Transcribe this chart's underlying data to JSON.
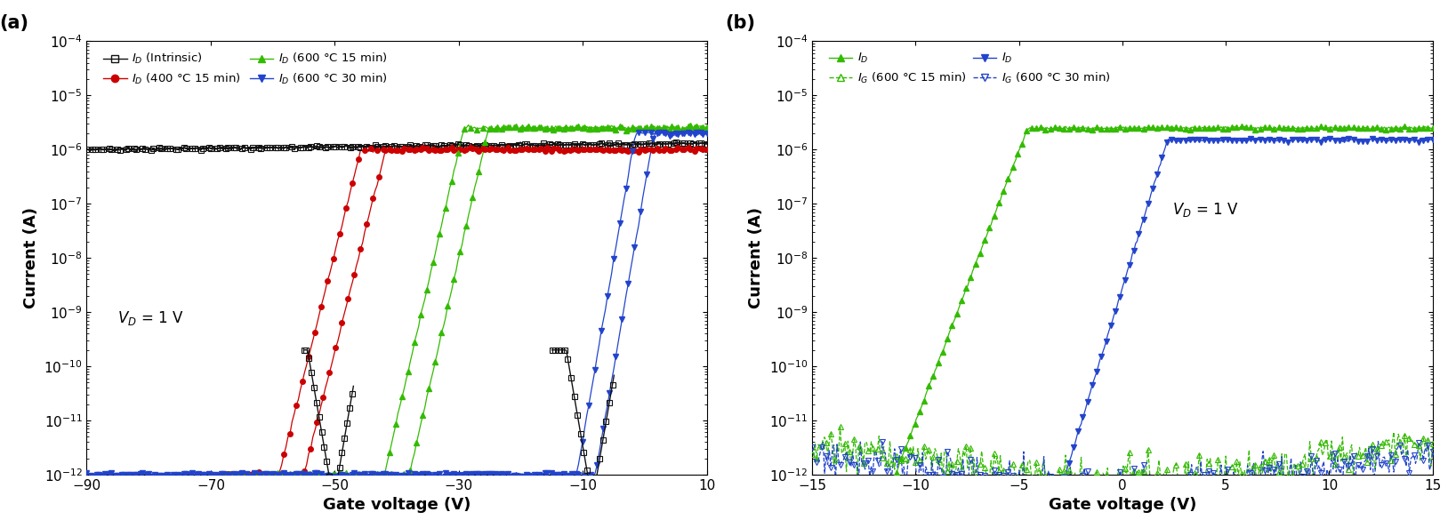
{
  "fig_width": 16.37,
  "fig_height": 5.94,
  "panel_a": {
    "xlabel": "Gate voltage (V)",
    "ylabel": "Current (A)",
    "xlim": [
      -90,
      10
    ],
    "ylim": [
      1e-12,
      0.0001
    ],
    "xticks": [
      -90,
      -70,
      -50,
      -30,
      -10,
      10
    ],
    "yticks": [
      -12,
      -10,
      -8,
      -6,
      -4
    ],
    "annotation": "$V_D$ = 1 V",
    "label": "(a)"
  },
  "panel_b": {
    "xlabel": "Gate voltage (V)",
    "ylabel": "Current (A)",
    "xlim": [
      -15,
      15
    ],
    "ylim": [
      1e-12,
      0.0001
    ],
    "xticks": [
      -15,
      -10,
      -5,
      0,
      5,
      10,
      15
    ],
    "annotation": "$V_D$ = 1 V",
    "label": "(b)"
  },
  "colors": {
    "black": "#111111",
    "red": "#cc0000",
    "green": "#33bb00",
    "blue": "#2244cc"
  }
}
